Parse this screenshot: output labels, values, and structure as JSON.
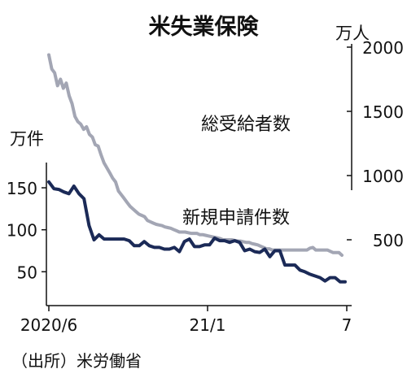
{
  "chart_data": {
    "type": "line",
    "title": "米失業保険",
    "source": "（出所）米労働省",
    "x_tick_labels": [
      "2020/6",
      "21/1",
      "7"
    ],
    "upper": {
      "series_name": "総受給者数",
      "unit": "万人",
      "ylim": [
        200,
        2000
      ],
      "ticks": [
        500,
        1000,
        1500,
        2000
      ],
      "values": [
        1940,
        1830,
        1800,
        1700,
        1750,
        1680,
        1720,
        1620,
        1560,
        1460,
        1420,
        1400,
        1360,
        1380,
        1320,
        1300,
        1240,
        1230,
        1160,
        1100,
        1060,
        1020,
        980,
        950,
        880,
        850,
        820,
        790,
        760,
        740,
        720,
        700,
        690,
        680,
        650,
        640,
        630,
        620,
        615,
        610,
        600,
        595,
        590,
        580,
        570,
        560,
        560,
        560,
        555,
        550,
        550,
        550,
        540,
        540,
        535,
        530,
        525,
        520,
        515,
        510,
        500,
        500,
        500,
        500,
        495,
        490,
        490,
        485,
        480,
        480,
        470,
        465,
        460,
        450,
        440,
        430,
        430,
        420,
        420,
        420,
        420,
        420,
        420,
        420,
        420,
        420,
        420,
        420,
        420,
        420,
        435,
        440,
        420,
        420,
        420,
        420,
        420,
        410,
        400,
        400,
        400,
        380
      ]
    },
    "lower": {
      "series_name": "新規申請件数",
      "unit": "万件",
      "ylim": [
        30,
        165
      ],
      "ticks": [
        50,
        100,
        150
      ],
      "values": [
        157,
        149,
        148,
        145,
        143,
        152,
        143,
        137,
        105,
        88,
        94,
        89,
        89,
        89,
        89,
        89,
        87,
        81,
        81,
        86,
        81,
        79,
        79,
        77,
        77,
        79,
        74,
        86,
        89,
        80,
        80,
        82,
        82,
        90,
        87,
        87,
        85,
        87,
        85,
        75,
        77,
        74,
        73,
        77,
        68,
        75,
        75,
        58,
        58,
        58,
        52,
        50,
        47,
        45,
        43,
        39,
        43,
        43,
        38,
        38
      ]
    }
  }
}
